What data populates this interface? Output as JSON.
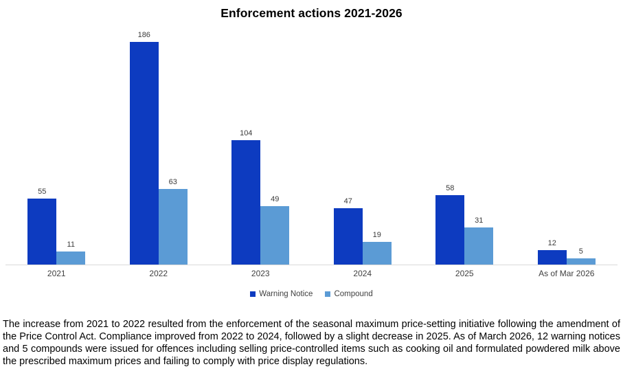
{
  "chart_data": {
    "type": "bar",
    "title": "Enforcement actions 2021-2026",
    "categories": [
      "2021",
      "2022",
      "2023",
      "2024",
      "2025",
      "As of Mar 2026"
    ],
    "series": [
      {
        "name": "Warning Notice",
        "color": "#0D3BC0",
        "values": [
          55,
          186,
          104,
          47,
          58,
          12
        ]
      },
      {
        "name": "Compound",
        "color": "#5B9BD5",
        "values": [
          11,
          63,
          49,
          19,
          31,
          5
        ]
      }
    ],
    "xlabel": "",
    "ylabel": "",
    "ylim": [
      0,
      200
    ],
    "grid": false,
    "axis_line_color": "#D9D9D9",
    "value_label_color": "#3A3A3A",
    "legend_position": "bottom"
  },
  "caption": {
    "text": "The increase from 2021 to 2022 resulted from the enforcement of the seasonal maximum price-setting initiative following the amendment of the Price Control Act. Compliance improved from 2022 to 2024, followed by a slight decrease in 2025. As of March 2026, 12 warning notices and 5 compounds were issued for offences including selling price-controlled items such as cooking oil and formulated powdered milk above the prescribed maximum prices and failing to comply with price display regulations."
  }
}
